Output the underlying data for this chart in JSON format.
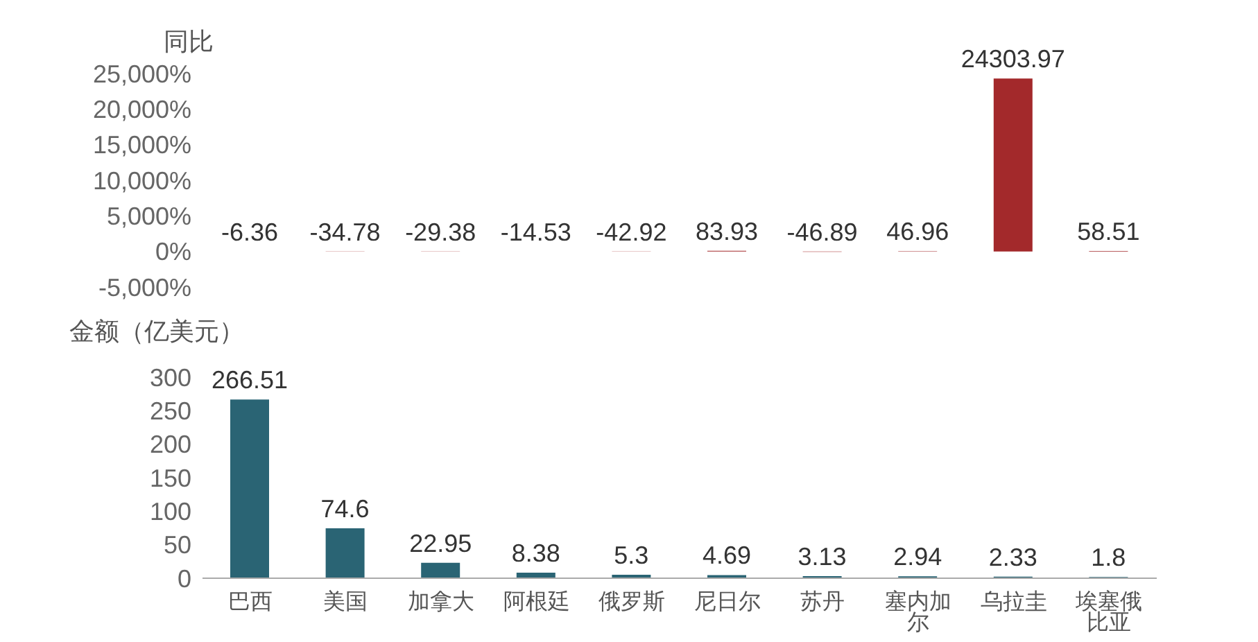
{
  "chart_data": [
    {
      "type": "bar",
      "ylabel": "同比",
      "categories": [
        "巴西",
        "美国",
        "加拿大",
        "阿根廷",
        "俄罗斯",
        "尼日尔",
        "苏丹",
        "塞内加尔",
        "乌拉圭",
        "埃塞俄比亚"
      ],
      "values": [
        -6.36,
        -34.78,
        -29.38,
        -14.53,
        -42.92,
        83.93,
        -46.89,
        46.96,
        24303.97,
        58.51
      ],
      "color": "#a3292b",
      "ylim": [
        -5000,
        25000
      ],
      "yticks": [
        {
          "value": -5000,
          "label": "-5,000%"
        },
        {
          "value": 0,
          "label": "0%"
        },
        {
          "value": 5000,
          "label": "5,000%"
        },
        {
          "value": 10000,
          "label": "10,000%"
        },
        {
          "value": 15000,
          "label": "15,000%"
        },
        {
          "value": 20000,
          "label": "20,000%"
        },
        {
          "value": 25000,
          "label": "25,000%"
        }
      ],
      "data_labels": true,
      "tick_labels": "y",
      "grid": false,
      "legend": false
    },
    {
      "type": "bar",
      "ylabel": "金额（亿美元）",
      "categories": [
        "巴西",
        "美国",
        "加拿大",
        "阿根廷",
        "俄罗斯",
        "尼日尔",
        "苏丹",
        "塞内加尔",
        "乌拉圭",
        "埃塞俄比亚"
      ],
      "values": [
        266.51,
        74.6,
        22.95,
        8.38,
        5.3,
        4.69,
        3.13,
        2.94,
        2.33,
        1.8
      ],
      "color": "#2a6474",
      "ylim": [
        0,
        300
      ],
      "yticks": [
        0,
        50,
        100,
        150,
        200,
        250,
        300
      ],
      "data_labels": true,
      "grid": false,
      "legend": false
    }
  ]
}
